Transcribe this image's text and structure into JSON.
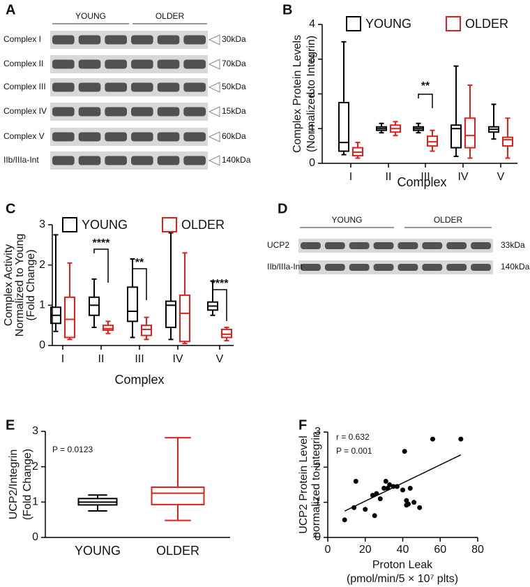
{
  "chart_data": [
    {
      "type": "box",
      "label": "B",
      "y_label": [
        "Complex Protein Levels",
        "(Normalized to Integrin)"
      ],
      "x_label": "Complex",
      "categories": [
        "I",
        "II",
        "III",
        "IV",
        "V"
      ],
      "ylim": [
        0,
        4
      ],
      "yticks": [
        0,
        1,
        2,
        3,
        4
      ],
      "annotations": [
        "**"
      ],
      "series": [
        {
          "name": "YOUNG",
          "color": "#000000",
          "min": [
            0.25,
            0.88,
            0.88,
            0.2,
            0.7
          ],
          "q1": [
            0.35,
            0.95,
            0.95,
            0.45,
            0.9
          ],
          "median": [
            0.6,
            1.0,
            1.0,
            1.0,
            0.98
          ],
          "q3": [
            1.75,
            1.05,
            1.05,
            1.1,
            1.05
          ],
          "max": [
            3.5,
            1.15,
            1.15,
            2.8,
            1.7
          ]
        },
        {
          "name": "OLDER",
          "color": "#e0201b",
          "min": [
            0.15,
            0.8,
            0.35,
            0.15,
            0.15
          ],
          "q1": [
            0.22,
            0.9,
            0.5,
            0.45,
            0.5
          ],
          "median": [
            0.32,
            1.0,
            0.62,
            0.8,
            0.68
          ],
          "q3": [
            0.45,
            1.1,
            0.78,
            1.3,
            0.75
          ],
          "max": [
            0.6,
            1.2,
            0.95,
            2.25,
            1.3
          ]
        }
      ]
    },
    {
      "type": "box",
      "label": "C",
      "y_label": [
        "Complex Activity",
        "Normalized to Young",
        "(Fold Change)"
      ],
      "x_label": "Complex",
      "categories": [
        "I",
        "II",
        "III",
        "IV",
        "V"
      ],
      "ylim": [
        0,
        3
      ],
      "yticks": [
        0,
        1,
        2,
        3
      ],
      "annotations": [
        "****",
        "**",
        "****"
      ],
      "series": [
        {
          "name": "YOUNG",
          "color": "#000000",
          "min": [
            0.35,
            0.45,
            0.2,
            0.15,
            0.75
          ],
          "q1": [
            0.55,
            0.75,
            0.6,
            0.45,
            0.88
          ],
          "median": [
            0.75,
            1.0,
            0.85,
            1.0,
            0.98
          ],
          "q3": [
            0.95,
            1.2,
            1.45,
            1.1,
            1.08
          ],
          "max": [
            2.75,
            1.65,
            2.15,
            2.8,
            1.6
          ]
        },
        {
          "name": "OLDER",
          "color": "#e0201b",
          "min": [
            0.15,
            0.3,
            0.15,
            0.05,
            0.12
          ],
          "q1": [
            0.2,
            0.38,
            0.25,
            0.1,
            0.2
          ],
          "median": [
            0.65,
            0.42,
            0.4,
            0.8,
            0.28
          ],
          "q3": [
            1.2,
            0.5,
            0.5,
            1.25,
            0.4
          ],
          "max": [
            2.05,
            0.6,
            0.7,
            2.3,
            0.45
          ]
        }
      ]
    },
    {
      "type": "box",
      "label": "E",
      "y_label": [
        "UCP2/Integrin",
        "(Fold Change)"
      ],
      "categories": [
        "YOUNG",
        "OLDER"
      ],
      "colors": [
        "#000000",
        "#e0201b"
      ],
      "ylim": [
        0,
        3
      ],
      "yticks": [
        0,
        1,
        2,
        3
      ],
      "annotations": [
        "P = 0.0123"
      ],
      "min": [
        0.75,
        0.48
      ],
      "q1": [
        0.92,
        0.93
      ],
      "median": [
        1.0,
        1.25
      ],
      "q3": [
        1.1,
        1.42
      ],
      "max": [
        1.2,
        2.82
      ]
    },
    {
      "type": "scatter",
      "label": "F",
      "y_label": [
        "UCP2 Protein Level",
        "normalized to integrin"
      ],
      "x_label": [
        "Proton Leak",
        "(pmol/min/5 × 10⁷ plts)"
      ],
      "xlim": [
        0,
        80
      ],
      "xticks": [
        0,
        20,
        40,
        60,
        80
      ],
      "ylim": [
        0,
        3
      ],
      "yticks": [
        0,
        1,
        2,
        3
      ],
      "color": "#000000",
      "annotations": [
        "r = 0.632",
        "P = 0.001"
      ],
      "x": [
        9,
        14,
        15,
        20,
        24,
        26,
        28,
        25,
        30,
        31,
        32,
        33,
        35,
        37,
        40,
        41,
        42,
        42,
        43,
        44,
        46,
        49,
        56,
        71
      ],
      "y": [
        0.5,
        0.85,
        1.6,
        0.8,
        1.2,
        1.25,
        1.1,
        0.62,
        1.4,
        1.6,
        1.4,
        1.5,
        1.45,
        1.45,
        1.35,
        2.45,
        1.05,
        0.92,
        0.95,
        1.4,
        1.0,
        0.85,
        2.8,
        2.8
      ],
      "trendline": {
        "x": [
          9,
          71
        ],
        "y": [
          0.75,
          2.35
        ]
      }
    }
  ],
  "blots": [
    {
      "label": "A",
      "groups": [
        "YOUNG",
        "OLDER"
      ],
      "rows": [
        {
          "name": "Complex I",
          "size": "30kDa"
        },
        {
          "name": "Complex II",
          "size": "70kDa"
        },
        {
          "name": "Complex III",
          "size": "50kDa"
        },
        {
          "name": "Complex IV",
          "size": "15kDa"
        },
        {
          "name": "Complex V",
          "size": "60kDa"
        },
        {
          "name": "IIb/IIIa-Int",
          "size": "140kDa"
        }
      ]
    },
    {
      "label": "D",
      "groups": [
        "YOUNG",
        "OLDER"
      ],
      "rows": [
        {
          "name": "UCP2",
          "size": "33kDa"
        },
        {
          "name": "IIb/IIIa-Int",
          "size": "140kDa"
        }
      ]
    }
  ]
}
